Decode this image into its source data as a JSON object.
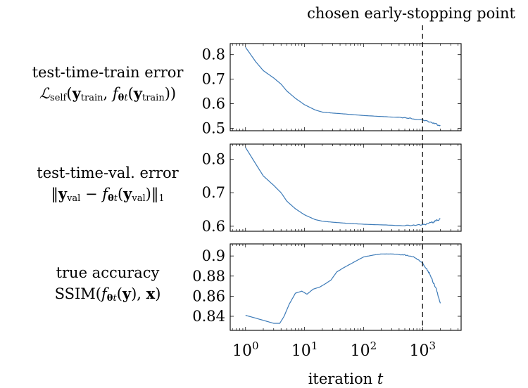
{
  "figure": {
    "annotation": "chosen early-stopping point",
    "xlabel": "iteration t",
    "row_labels": [
      {
        "line1": "test-time-train error",
        "line2": "ℒself(ytrain, fθt(ytrain))"
      },
      {
        "line1": "test-time-val. error",
        "line2": "‖yval − fθt(yval)‖1"
      },
      {
        "line1": "true accuracy",
        "line2": "SSIM(fθt(y), x)"
      }
    ]
  },
  "chart_data": [
    {
      "type": "line",
      "panel": "test-time-train error",
      "xscale": "log",
      "xlim": [
        0.55,
        4500
      ],
      "ylim": [
        0.49,
        0.845
      ],
      "yticks": [
        "0.5",
        "0.6",
        "0.7",
        "0.8"
      ],
      "ytick_values": [
        0.5,
        0.6,
        0.7,
        0.8
      ],
      "series_color": "#3d7bb8",
      "x": [
        1,
        1.5,
        2,
        3,
        4,
        5,
        7,
        10,
        15,
        20,
        30,
        50,
        100,
        200,
        500,
        1000,
        1500,
        2000
      ],
      "y": [
        0.83,
        0.77,
        0.735,
        0.705,
        0.68,
        0.652,
        0.622,
        0.596,
        0.575,
        0.566,
        0.562,
        0.558,
        0.552,
        0.548,
        0.543,
        0.535,
        0.522,
        0.512
      ]
    },
    {
      "type": "line",
      "panel": "test-time-val. error",
      "xscale": "log",
      "xlim": [
        0.55,
        4500
      ],
      "ylim": [
        0.585,
        0.845
      ],
      "yticks": [
        "0.6",
        "0.7",
        "0.8"
      ],
      "ytick_values": [
        0.6,
        0.7,
        0.8
      ],
      "series_color": "#3d7bb8",
      "x": [
        1,
        1.5,
        2,
        3,
        4,
        5,
        7,
        10,
        15,
        20,
        30,
        50,
        100,
        200,
        500,
        1000,
        1500,
        2000
      ],
      "y": [
        0.835,
        0.785,
        0.75,
        0.722,
        0.7,
        0.675,
        0.652,
        0.634,
        0.62,
        0.615,
        0.612,
        0.609,
        0.606,
        0.604,
        0.602,
        0.604,
        0.612,
        0.622
      ]
    },
    {
      "type": "line",
      "panel": "true accuracy",
      "xscale": "log",
      "xlim": [
        0.55,
        4500
      ],
      "ylim": [
        0.826,
        0.912
      ],
      "yticks": [
        "0.84",
        "0.86",
        "0.88",
        "0.9"
      ],
      "ytick_values": [
        0.84,
        0.86,
        0.88,
        0.9
      ],
      "xticks": [
        "10^0",
        "10^1",
        "10^2",
        "10^3"
      ],
      "xtick_values": [
        1,
        10,
        100,
        1000
      ],
      "series_color": "#3d7bb8",
      "x": [
        1,
        2,
        3,
        3.8,
        4.5,
        5.5,
        7,
        9,
        11,
        14,
        18,
        22,
        28,
        35,
        45,
        60,
        80,
        100,
        150,
        200,
        300,
        500,
        700,
        1000,
        1300,
        1700,
        2000
      ],
      "y": [
        0.841,
        0.836,
        0.833,
        0.833,
        0.84,
        0.852,
        0.863,
        0.865,
        0.862,
        0.867,
        0.869,
        0.872,
        0.876,
        0.884,
        0.888,
        0.892,
        0.896,
        0.899,
        0.901,
        0.902,
        0.902,
        0.901,
        0.899,
        0.893,
        0.883,
        0.867,
        0.853
      ]
    }
  ],
  "early_stop_x": 1000
}
